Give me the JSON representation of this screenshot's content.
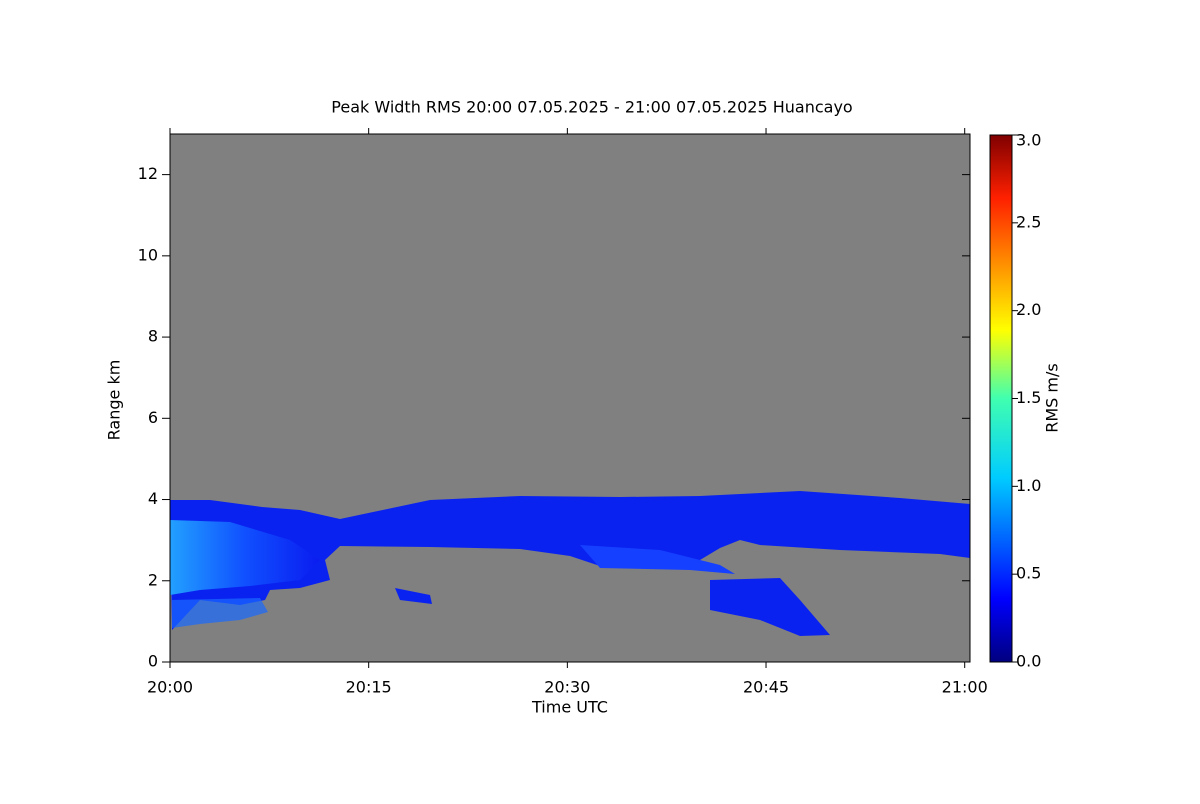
{
  "chart_data": {
    "type": "heatmap",
    "title": "Peak Width RMS   20:00 07.05.2025 - 21:00 07.05.2025 Huancayo",
    "x_label": "Time UTC",
    "y_label": "Range km",
    "xlim": [
      0,
      60.4
    ],
    "xticks": [
      {
        "value": 0,
        "label": "20:00"
      },
      {
        "value": 15,
        "label": "20:15"
      },
      {
        "value": 30,
        "label": "20:30"
      },
      {
        "value": 45,
        "label": "20:45"
      },
      {
        "value": 60,
        "label": "21:00"
      }
    ],
    "ylim": [
      0,
      13
    ],
    "yticks": [
      0,
      2,
      4,
      6,
      8,
      10,
      12
    ],
    "colorbar": {
      "label": "RMS m/s",
      "lim": [
        0,
        3
      ],
      "ticks": [
        {
          "value": 0,
          "label": "0.0"
        },
        0.5,
        {
          "value": 1,
          "label": "1.0"
        },
        1.5,
        {
          "value": 2,
          "label": "2.0"
        },
        2.5,
        {
          "value": 3,
          "label": "3.0"
        }
      ]
    }
  }
}
